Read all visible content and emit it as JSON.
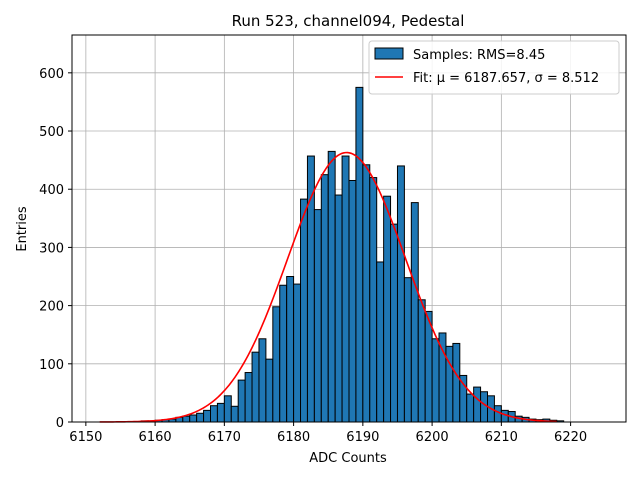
{
  "chart_data": {
    "type": "bar",
    "title": "Run 523, channel094, Pedestal",
    "xlabel": "ADC Counts",
    "ylabel": "Entries",
    "xlim": [
      6148,
      6228
    ],
    "ylim": [
      0,
      665
    ],
    "xticks": [
      6150,
      6160,
      6170,
      6180,
      6190,
      6200,
      6210,
      6220
    ],
    "yticks": [
      0,
      100,
      200,
      300,
      400,
      500,
      600
    ],
    "grid": true,
    "legend_position": "top-right",
    "colors": {
      "bars": "#1f77b4",
      "bar_edge": "#000000",
      "fit": "#ff0000"
    },
    "series": [
      {
        "name": "Samples: RMS=8.45",
        "kind": "histogram",
        "bin_width": 1,
        "bins": [
          {
            "x": 6158,
            "count": 2
          },
          {
            "x": 6159,
            "count": 2
          },
          {
            "x": 6160,
            "count": 3
          },
          {
            "x": 6161,
            "count": 4
          },
          {
            "x": 6162,
            "count": 5
          },
          {
            "x": 6163,
            "count": 8
          },
          {
            "x": 6164,
            "count": 10
          },
          {
            "x": 6165,
            "count": 12
          },
          {
            "x": 6166,
            "count": 15
          },
          {
            "x": 6167,
            "count": 20
          },
          {
            "x": 6168,
            "count": 28
          },
          {
            "x": 6169,
            "count": 32
          },
          {
            "x": 6170,
            "count": 45
          },
          {
            "x": 6171,
            "count": 27
          },
          {
            "x": 6172,
            "count": 72
          },
          {
            "x": 6173,
            "count": 85
          },
          {
            "x": 6174,
            "count": 120
          },
          {
            "x": 6175,
            "count": 143
          },
          {
            "x": 6176,
            "count": 108
          },
          {
            "x": 6177,
            "count": 198
          },
          {
            "x": 6178,
            "count": 235
          },
          {
            "x": 6179,
            "count": 250
          },
          {
            "x": 6180,
            "count": 237
          },
          {
            "x": 6181,
            "count": 383
          },
          {
            "x": 6182,
            "count": 457
          },
          {
            "x": 6183,
            "count": 365
          },
          {
            "x": 6184,
            "count": 425
          },
          {
            "x": 6185,
            "count": 465
          },
          {
            "x": 6186,
            "count": 390
          },
          {
            "x": 6187,
            "count": 457
          },
          {
            "x": 6188,
            "count": 415
          },
          {
            "x": 6189,
            "count": 575
          },
          {
            "x": 6190,
            "count": 442
          },
          {
            "x": 6191,
            "count": 420
          },
          {
            "x": 6192,
            "count": 275
          },
          {
            "x": 6193,
            "count": 388
          },
          {
            "x": 6194,
            "count": 340
          },
          {
            "x": 6195,
            "count": 440
          },
          {
            "x": 6196,
            "count": 248
          },
          {
            "x": 6197,
            "count": 377
          },
          {
            "x": 6198,
            "count": 210
          },
          {
            "x": 6199,
            "count": 190
          },
          {
            "x": 6200,
            "count": 143
          },
          {
            "x": 6201,
            "count": 153
          },
          {
            "x": 6202,
            "count": 130
          },
          {
            "x": 6203,
            "count": 135
          },
          {
            "x": 6204,
            "count": 80
          },
          {
            "x": 6205,
            "count": 48
          },
          {
            "x": 6206,
            "count": 60
          },
          {
            "x": 6207,
            "count": 52
          },
          {
            "x": 6208,
            "count": 45
          },
          {
            "x": 6209,
            "count": 28
          },
          {
            "x": 6210,
            "count": 20
          },
          {
            "x": 6211,
            "count": 18
          },
          {
            "x": 6212,
            "count": 10
          },
          {
            "x": 6213,
            "count": 8
          },
          {
            "x": 6214,
            "count": 5
          },
          {
            "x": 6215,
            "count": 4
          },
          {
            "x": 6216,
            "count": 5
          },
          {
            "x": 6217,
            "count": 3
          },
          {
            "x": 6218,
            "count": 2
          }
        ]
      },
      {
        "name": "Fit: μ = 6187.657, σ = 8.512",
        "kind": "gaussian",
        "mu": 6187.657,
        "sigma": 8.512,
        "amplitude": 463,
        "x_range": [
          6152,
          6218
        ]
      }
    ]
  }
}
